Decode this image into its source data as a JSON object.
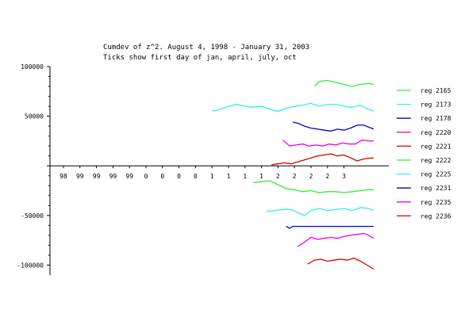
{
  "chart_data": {
    "type": "line",
    "title": "Cumdev of z^2.  August 4, 1998 - January 31, 2003",
    "subtitle": "Ticks show first day of jan, april, july, oct",
    "xlabel": "",
    "ylabel": "",
    "ylim": [
      -110000,
      100000
    ],
    "xlim": [
      0,
      18
    ],
    "x_tick_labels": [
      "98",
      "99",
      "99",
      "99",
      "99",
      "0",
      "0",
      "0",
      "0",
      "1",
      "1",
      "1",
      "1",
      "2",
      "2",
      "2",
      "2",
      "3"
    ],
    "y_ticks": [
      100000,
      50000,
      -50000,
      -100000
    ],
    "y_tick_labels": [
      "100000",
      "50000",
      "-50000",
      "-100000"
    ],
    "grid": false,
    "legend_position": "right",
    "series": [
      {
        "name": "reg 2165",
        "color": "#33ee33",
        "x": [
          15.2,
          15.5,
          16.0,
          16.5,
          17.0,
          17.5,
          18.0,
          18.5,
          18.8
        ],
        "y": [
          80000,
          85000,
          86000,
          84000,
          82000,
          80000,
          82000,
          83000,
          82000
        ]
      },
      {
        "name": "reg 2173",
        "color": "#33eeee",
        "x": [
          9.0,
          9.5,
          10.0,
          10.5,
          11.0,
          11.5,
          12.0,
          12.5,
          13.0,
          13.5,
          14.0,
          14.5,
          15.0,
          15.5,
          16.0,
          16.5,
          17.0,
          17.5,
          18.0,
          18.5,
          18.8
        ],
        "y": [
          55000,
          57000,
          60000,
          62000,
          60000,
          59000,
          60000,
          57000,
          55000,
          58000,
          60000,
          61000,
          63000,
          60000,
          62000,
          62000,
          60000,
          59000,
          61000,
          57000,
          55000
        ]
      },
      {
        "name": "reg 2178",
        "color": "#0000cc",
        "x": [
          13.9,
          14.2,
          14.6,
          15.0,
          15.4,
          15.8,
          16.2,
          16.6,
          17.0,
          17.4,
          17.8,
          18.2,
          18.8
        ],
        "y": [
          44000,
          43000,
          40000,
          38000,
          37000,
          36000,
          35000,
          37000,
          36000,
          38000,
          41000,
          41000,
          37000
        ]
      },
      {
        "name": "reg 2220",
        "color": "#ee00ee",
        "x": [
          13.3,
          13.7,
          14.1,
          14.5,
          14.9,
          15.3,
          15.7,
          16.1,
          16.5,
          16.9,
          17.3,
          17.7,
          18.1,
          18.5,
          18.8
        ],
        "y": [
          26000,
          20000,
          21000,
          22000,
          20000,
          21000,
          20000,
          22000,
          21000,
          23000,
          22000,
          22000,
          26000,
          25000,
          25000
        ]
      },
      {
        "name": "reg 2221",
        "color": "#dd0000",
        "x": [
          12.6,
          13.0,
          13.4,
          13.8,
          14.2,
          14.6,
          15.0,
          15.4,
          15.8,
          16.2,
          16.6,
          17.0,
          17.4,
          17.8,
          18.2,
          18.8
        ],
        "y": [
          1000,
          2000,
          3000,
          2000,
          4000,
          6000,
          8000,
          10000,
          11000,
          12000,
          10000,
          11000,
          8000,
          5000,
          7000,
          8000
        ]
      },
      {
        "name": "reg 2222",
        "color": "#33ee33",
        "x": [
          11.5,
          12.0,
          12.5,
          13.0,
          13.5,
          14.0,
          14.5,
          15.0,
          15.5,
          16.0,
          16.5,
          17.0,
          17.5,
          18.0,
          18.5,
          18.8
        ],
        "y": [
          -17000,
          -16000,
          -15000,
          -19000,
          -23000,
          -24000,
          -26000,
          -25000,
          -27000,
          -26000,
          -26000,
          -27000,
          -26000,
          -25000,
          -24000,
          -24000
        ]
      },
      {
        "name": "reg 2225",
        "color": "#33eeee",
        "x": [
          12.3,
          12.8,
          13.3,
          13.8,
          14.2,
          14.6,
          15.0,
          15.5,
          16.0,
          16.5,
          17.0,
          17.5,
          18.0,
          18.5,
          18.8
        ],
        "y": [
          -46000,
          -45000,
          -44000,
          -44000,
          -47000,
          -50000,
          -45000,
          -43000,
          -45000,
          -44000,
          -43000,
          -45000,
          -42000,
          -43000,
          -45000
        ]
      },
      {
        "name": "reg 2231",
        "color": "#0000cc",
        "x": [
          13.5,
          13.7,
          13.9,
          14.0,
          18.8
        ],
        "y": [
          -61000,
          -63000,
          -61000,
          -61000,
          -61000
        ]
      },
      {
        "name": "reg 2235",
        "color": "#ee00ee",
        "x": [
          14.2,
          14.6,
          15.0,
          15.4,
          15.8,
          16.2,
          16.6,
          17.0,
          17.4,
          17.8,
          18.2,
          18.5,
          18.8
        ],
        "y": [
          -81000,
          -77000,
          -72000,
          -74000,
          -73000,
          -72000,
          -73000,
          -71000,
          -70000,
          -69000,
          -68000,
          -70000,
          -73000
        ]
      },
      {
        "name": "reg 2236",
        "color": "#dd0000",
        "x": [
          14.8,
          15.2,
          15.6,
          16.0,
          16.4,
          16.8,
          17.2,
          17.6,
          18.0,
          18.4,
          18.8
        ],
        "y": [
          -99000,
          -95000,
          -94000,
          -96000,
          -95000,
          -94000,
          -95000,
          -93000,
          -96000,
          -100000,
          -104000
        ]
      }
    ]
  }
}
